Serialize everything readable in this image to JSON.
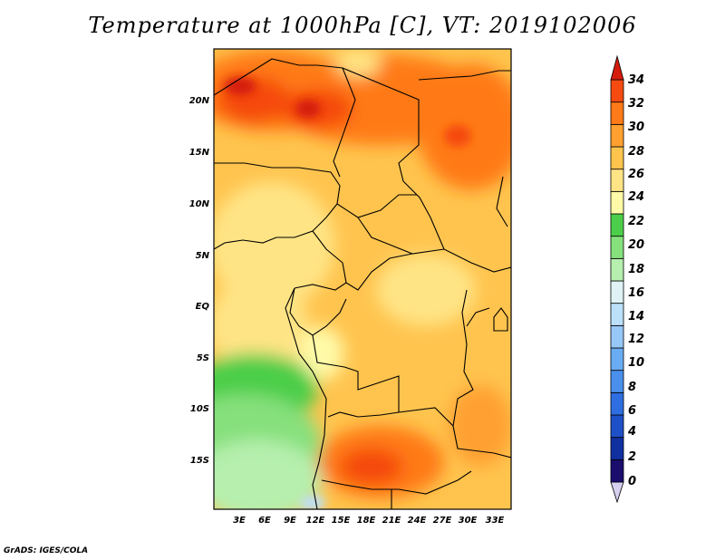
{
  "title": "Temperature at 1000hPa [C], VT: 2019102006",
  "credit": "GrADS: IGES/COLA",
  "lat_labels": [
    "20N",
    "15N",
    "10N",
    "5N",
    "EQ",
    "5S",
    "10S",
    "15S"
  ],
  "lon_labels": [
    "3E",
    "6E",
    "9E",
    "12E",
    "15E",
    "18E",
    "21E",
    "24E",
    "27E",
    "30E",
    "33E"
  ],
  "colorbar": {
    "labels": [
      "0",
      "2",
      "4",
      "6",
      "8",
      "10",
      "12",
      "14",
      "16",
      "18",
      "20",
      "22",
      "24",
      "26",
      "28",
      "30",
      "32",
      "34"
    ],
    "colors": [
      "#d8d0f0",
      "#1a0d6e",
      "#1030a0",
      "#1e50c8",
      "#2e6ee0",
      "#4a8fec",
      "#6aacf4",
      "#98c8f8",
      "#bce0fa",
      "#dff3f7",
      "#b6efae",
      "#86e07c",
      "#4cce4a",
      "#fffaa8",
      "#ffe485",
      "#ffc44e",
      "#ffa030",
      "#ff7a18",
      "#f54a10",
      "#d41c0c"
    ]
  }
}
